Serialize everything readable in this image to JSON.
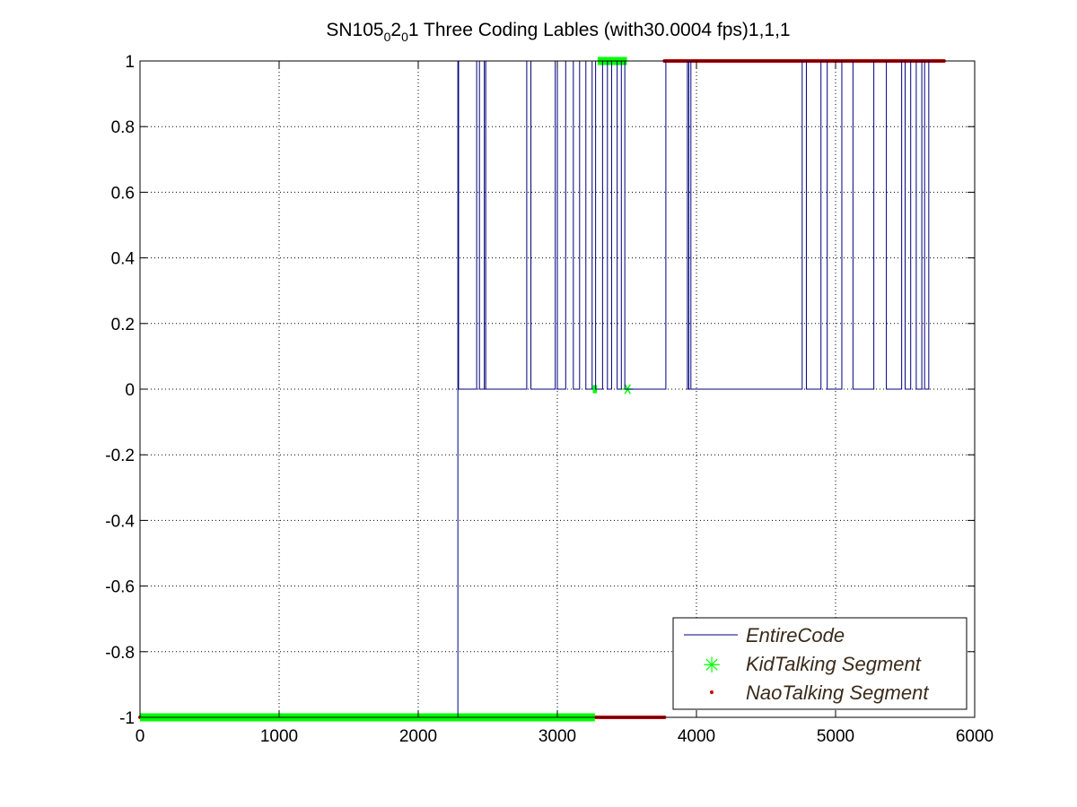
{
  "chart_data": {
    "type": "line",
    "title": {
      "base": "SN105",
      "sub1": "0",
      "mid": "2",
      "sub2": "0",
      "rest": "1 Three Coding Lables (with30.0004 fps)1,1,1"
    },
    "xlabel": "",
    "ylabel": "",
    "xlim": [
      0,
      6000
    ],
    "ylim": [
      -1,
      1
    ],
    "xticks": [
      0,
      1000,
      2000,
      3000,
      4000,
      5000,
      6000
    ],
    "yticks": [
      -1,
      -0.8,
      -0.6,
      -0.4,
      -0.2,
      0,
      0.2,
      0.4,
      0.6,
      0.8,
      1
    ],
    "xtick_labels": [
      "0",
      "1000",
      "2000",
      "3000",
      "4000",
      "5000",
      "6000"
    ],
    "ytick_labels": [
      "-1",
      "-0.8",
      "-0.6",
      "-0.4",
      "-0.2",
      "0",
      "0.2",
      "0.4",
      "0.6",
      "0.8",
      "1"
    ],
    "grid": true,
    "grid_style": "dotted",
    "legend_position": "bottom-right",
    "series": [
      {
        "name": "EntireCode",
        "style": "line",
        "color": "#00007f",
        "x": [
          0,
          2285,
          2285,
          2290,
          2290,
          2420,
          2420,
          2440,
          2440,
          2475,
          2475,
          2485,
          2485,
          2780,
          2780,
          2810,
          2810,
          2985,
          2985,
          3000,
          3000,
          3060,
          3060,
          3115,
          3115,
          3160,
          3160,
          3205,
          3205,
          3250,
          3250,
          3275,
          3275,
          3325,
          3325,
          3360,
          3360,
          3390,
          3390,
          3430,
          3430,
          3460,
          3460,
          3485,
          3485,
          3780,
          3780,
          3935,
          3935,
          3945,
          3945,
          3960,
          3960,
          4760,
          4760,
          4790,
          4790,
          4895,
          4895,
          4940,
          4940,
          5045,
          5045,
          5125,
          5125,
          5275,
          5275,
          5365,
          5365,
          5475,
          5475,
          5500,
          5500,
          5540,
          5540,
          5580,
          5580,
          5620,
          5620,
          5640,
          5640,
          5670,
          5670,
          5700
        ],
        "y": [
          -1,
          -1,
          1,
          1,
          0,
          0,
          1,
          1,
          0,
          0,
          1,
          1,
          0,
          0,
          1,
          1,
          0,
          0,
          1,
          1,
          0,
          0,
          1,
          1,
          0,
          0,
          1,
          1,
          0,
          0,
          1,
          1,
          0,
          0,
          1,
          1,
          0,
          0,
          1,
          1,
          0,
          0,
          1,
          1,
          0,
          0,
          1,
          1,
          0,
          0,
          1,
          1,
          0,
          0,
          1,
          1,
          0,
          0,
          1,
          1,
          0,
          0,
          1,
          1,
          0,
          0,
          1,
          1,
          0,
          0,
          1,
          1,
          0,
          0,
          1,
          1,
          0,
          0,
          1,
          1,
          0,
          0,
          1,
          1
        ]
      },
      {
        "name": "KidTalking Segment",
        "style": "marker-star",
        "color": "#00ff00",
        "segments": [
          {
            "x_start": 0,
            "x_end": 3270,
            "y": -1
          },
          {
            "x_start": 3255,
            "x_end": 3285,
            "y": 0
          },
          {
            "x_start": 3290,
            "x_end": 3500,
            "y": 1
          }
        ],
        "points": [
          {
            "x": 3505,
            "y": 0
          }
        ]
      },
      {
        "name": "NaoTalking Segment",
        "style": "marker-dot",
        "color": "#cc0000",
        "segments": [
          {
            "x_start": 0,
            "x_end": 3770,
            "y": -1
          },
          {
            "x_start": 3770,
            "x_end": 5780,
            "y": 1
          }
        ],
        "points": []
      }
    ]
  }
}
